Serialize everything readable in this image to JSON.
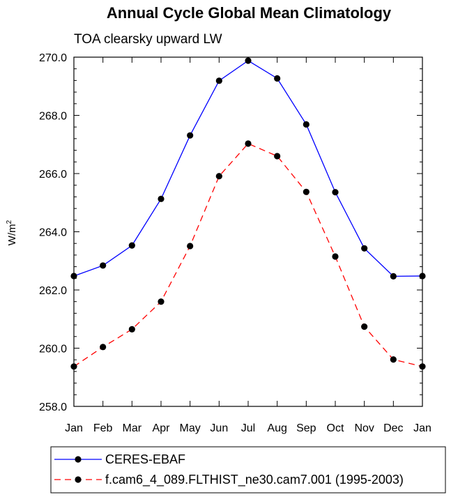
{
  "chart_data": {
    "type": "line",
    "title": "Annual Cycle Global Mean Climatology",
    "subtitle": "TOA clearsky upward LW",
    "ylabel": "W/m",
    "ylabel_sup": "2",
    "xlabel": "",
    "categories": [
      "Jan",
      "Feb",
      "Mar",
      "Apr",
      "May",
      "Jun",
      "Jul",
      "Aug",
      "Sep",
      "Oct",
      "Nov",
      "Dec",
      "Jan"
    ],
    "ylim": [
      258.0,
      270.0
    ],
    "yticks": [
      258.0,
      260.0,
      262.0,
      264.0,
      266.0,
      268.0,
      270.0
    ],
    "ytick_labels": [
      "258.0",
      "260.0",
      "262.0",
      "264.0",
      "266.0",
      "268.0",
      "270.0"
    ],
    "grid": false,
    "legend_position": "bottom",
    "series": [
      {
        "name": "CERES-EBAF",
        "color": "#0000ff",
        "dash": "solid",
        "values": [
          262.48,
          262.84,
          263.53,
          265.13,
          267.31,
          269.19,
          269.88,
          269.27,
          267.69,
          265.36,
          263.43,
          262.47,
          262.48
        ]
      },
      {
        "name": "f.cam6_4_089.FLTHIST_ne30.cam7.001 (1995-2003)",
        "color": "#ff0000",
        "dash": "dashed",
        "values": [
          259.37,
          260.04,
          260.65,
          261.6,
          263.51,
          265.91,
          267.03,
          266.6,
          265.37,
          263.15,
          260.74,
          259.61,
          259.37
        ]
      }
    ]
  }
}
